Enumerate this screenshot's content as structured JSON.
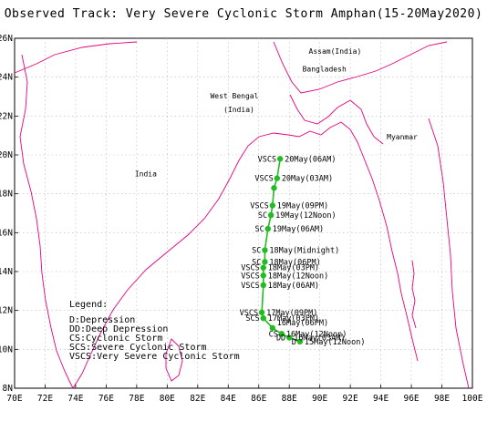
{
  "title": "Observed Track: Very Severe Cyclonic Storm Amphan(15-20May2020)",
  "map": {
    "lon_range": [
      70,
      100
    ],
    "lat_range": [
      8,
      26
    ],
    "lon_ticks": [
      "70E",
      "72E",
      "74E",
      "76E",
      "78E",
      "80E",
      "82E",
      "84E",
      "86E",
      "88E",
      "90E",
      "92E",
      "94E",
      "96E",
      "98E",
      "100E"
    ],
    "lat_ticks": [
      "8N",
      "10N",
      "12N",
      "14N",
      "16N",
      "18N",
      "20N",
      "22N",
      "24N",
      "26N"
    ],
    "grid": true,
    "colors": {
      "coastline": "#e6007e",
      "track": "#22bb22",
      "grid": "#b8b8b8"
    }
  },
  "places": [
    {
      "name": "Assam(India)",
      "lon": 91.0,
      "lat": 25.2
    },
    {
      "name": "Bangladesh",
      "lon": 90.3,
      "lat": 24.3
    },
    {
      "name": "West Bengal",
      "lon": 84.4,
      "lat": 22.9
    },
    {
      "name": "(India)",
      "lon": 84.7,
      "lat": 22.2
    },
    {
      "name": "Myanmar",
      "lon": 95.4,
      "lat": 20.8
    },
    {
      "name": "India",
      "lon": 78.6,
      "lat": 18.9
    }
  ],
  "track": [
    {
      "lon": 88.7,
      "lat": 10.4,
      "label": "D 15May(12Noon)"
    },
    {
      "lon": 88.0,
      "lat": 10.6,
      "label": "DD 16May(03AM)"
    },
    {
      "lon": 87.5,
      "lat": 10.8,
      "label": "CS 16May(12Noon)"
    },
    {
      "lon": 86.9,
      "lat": 11.1,
      "label": "16May(06PM)"
    },
    {
      "lon": 86.3,
      "lat": 11.6,
      "label": "SCS 17May(03PM)"
    },
    {
      "lon": 86.2,
      "lat": 11.9,
      "label": "VSCS 17May(09PM)"
    },
    {
      "lon": 86.3,
      "lat": 13.3,
      "label": "VSCS 18May(06AM)"
    },
    {
      "lon": 86.3,
      "lat": 13.8,
      "label": "VSCS 18May(12Noon)"
    },
    {
      "lon": 86.3,
      "lat": 14.2,
      "label": "VSCS 18May(03PM)"
    },
    {
      "lon": 86.4,
      "lat": 14.5,
      "label": "SC 18May(06PM)"
    },
    {
      "lon": 86.4,
      "lat": 15.1,
      "label": "SC 18May(Midnight)"
    },
    {
      "lon": 86.6,
      "lat": 16.2,
      "label": "SC 19May(06AM)"
    },
    {
      "lon": 86.8,
      "lat": 16.9,
      "label": "SC 19May(12Noon)"
    },
    {
      "lon": 86.9,
      "lat": 17.4,
      "label": "VSCS 19May(09PM)"
    },
    {
      "lon": 87.0,
      "lat": 18.3,
      "label": ""
    },
    {
      "lon": 87.2,
      "lat": 18.8,
      "label": "VSCS 20May(03AM)"
    },
    {
      "lon": 87.4,
      "lat": 19.8,
      "label": "VSCS 20May(06AM)"
    }
  ],
  "legend": {
    "title": "Legend:",
    "items": [
      "D:Depression",
      "DD:Deep Depression",
      "CS:Cyclonic Storm",
      "SCS:Severe Cyclonic Storm",
      "VSCS:Very Severe Cyclonic Storm"
    ]
  }
}
